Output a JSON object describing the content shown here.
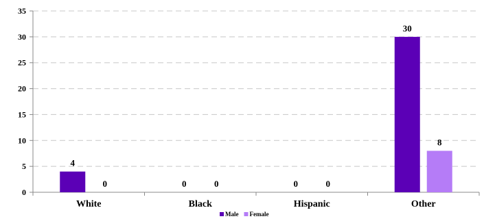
{
  "chart_data": {
    "type": "bar",
    "categories": [
      "White",
      "Black",
      "Hispanic",
      "Other"
    ],
    "series": [
      {
        "name": "Male",
        "values": [
          4,
          0,
          0,
          30
        ],
        "color": "#5b00b6"
      },
      {
        "name": "Female",
        "values": [
          0,
          0,
          0,
          8
        ],
        "color": "#b57cf7"
      }
    ],
    "ylim": [
      0,
      35
    ],
    "yticks": [
      0,
      5,
      10,
      15,
      20,
      25,
      30,
      35
    ],
    "grid": true,
    "legend_position": "bottom-center",
    "data_labels": true
  }
}
